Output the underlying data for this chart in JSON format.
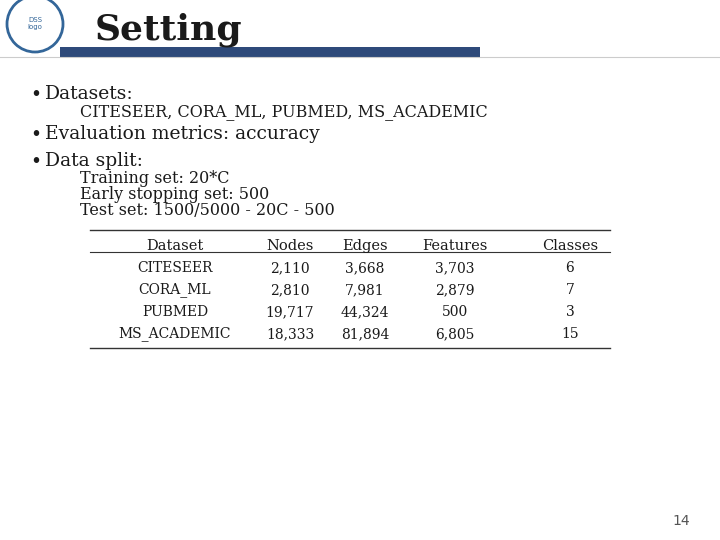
{
  "title": "Setting",
  "bg_color": "#ffffff",
  "header_bar_color": "#2E4A7A",
  "title_color": "#1a1a1a",
  "bullet1_main": "Datasets:",
  "bullet1_sub": "CITESEER, CORA_ML, PUBMED, MS_ACADEMIC",
  "bullet2": "Evaluation metrics: accuracy",
  "bullet3_main": "Data split:",
  "bullet3_sub1": "Training set: 20*C",
  "bullet3_sub2": "Early stopping set: 500",
  "bullet3_sub3": "Test set: 1500/5000 - 20C - 500",
  "table_headers": [
    "Dataset",
    "Nodes",
    "Edges",
    "Features",
    "Classes"
  ],
  "table_rows": [
    [
      "CITESEER",
      "2,110",
      "3,668",
      "3,703",
      "6"
    ],
    [
      "CORA_ML",
      "2,810",
      "7,981",
      "2,879",
      "7"
    ],
    [
      "PUBMED",
      "19,717",
      "44,324",
      "500",
      "3"
    ],
    [
      "MS_ACADEMIC",
      "18,333",
      "81,894",
      "6,805",
      "15"
    ]
  ],
  "page_number": "14",
  "bullet_color": "#1a1a1a",
  "text_color": "#1a1a1a",
  "sub_text_color": "#1a1a1a"
}
